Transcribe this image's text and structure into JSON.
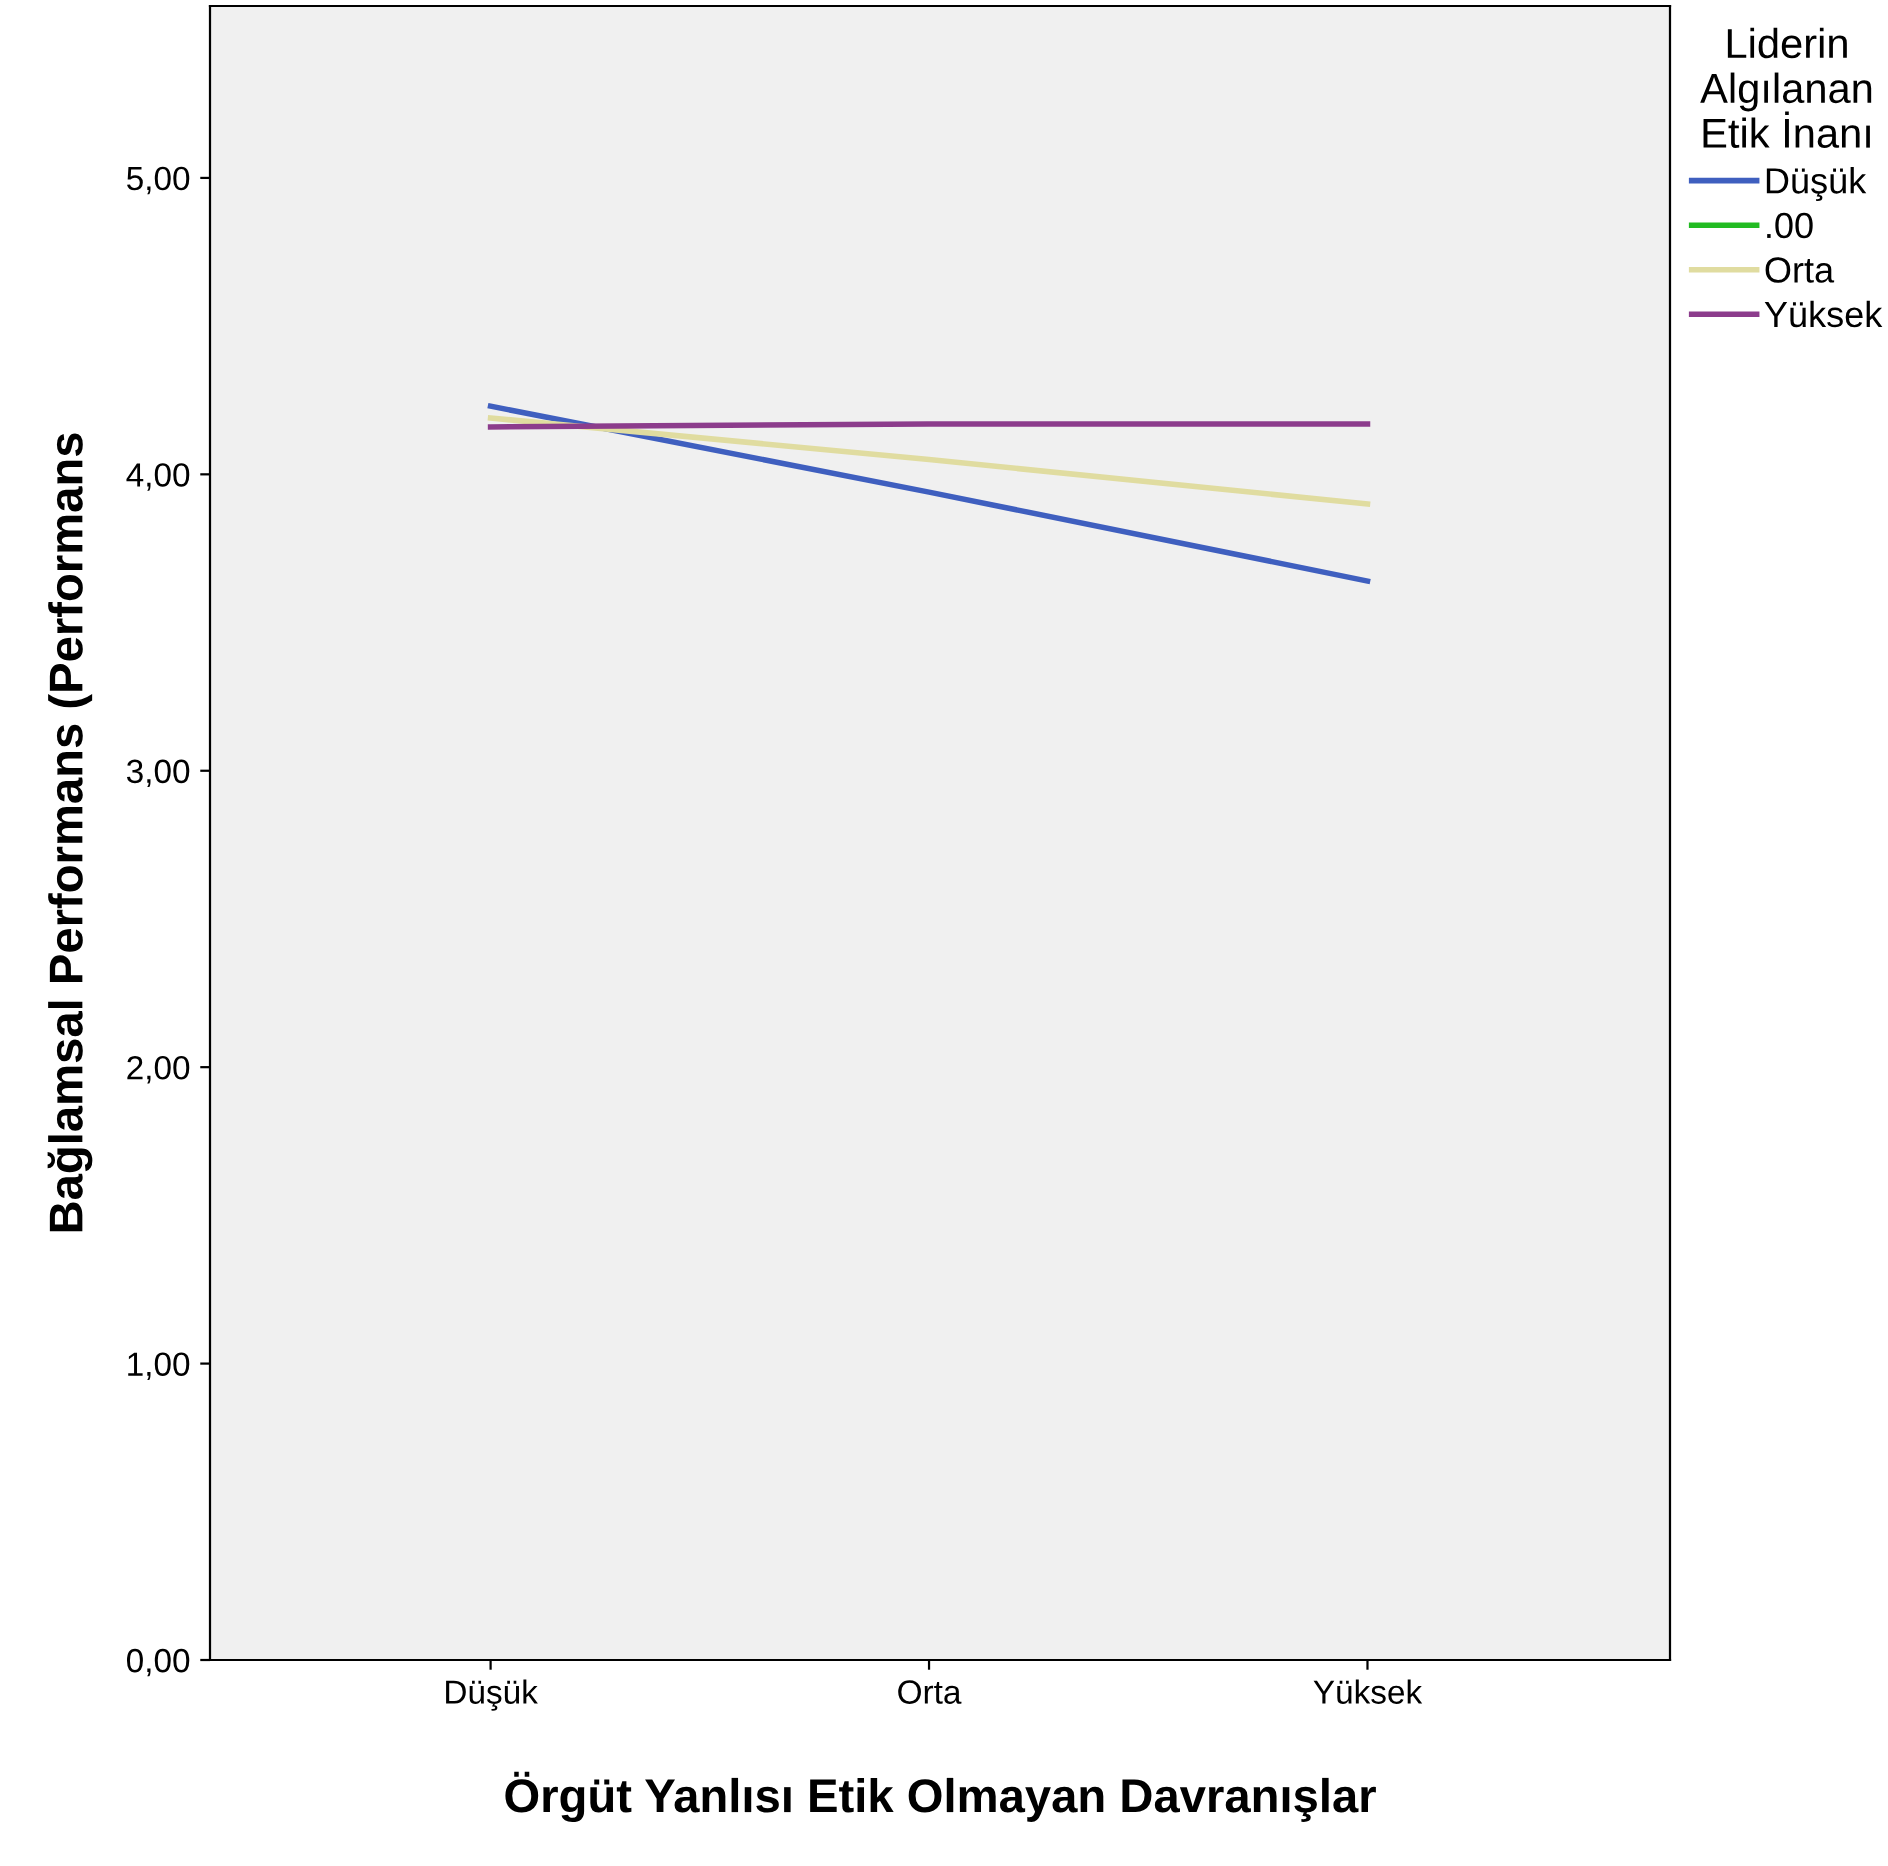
{
  "chart_data": {
    "type": "line",
    "xlabel": "Örgüt Yanlısı Etik Olmayan Davranışlar",
    "ylabel": "Bağlamsal Performans (Performans",
    "legend_title": "Liderin\nAlgılanan\nEtik İnanı",
    "categories": [
      "Düşük",
      "Orta",
      "Yüksek"
    ],
    "series": [
      {
        "name": "Düşük",
        "color": "#3f5fbf",
        "values": [
          4.23,
          3.94,
          3.64
        ]
      },
      {
        "name": ".00",
        "color": "#22bb22",
        "values": [
          null,
          null,
          null
        ]
      },
      {
        "name": "Orta",
        "color": "#e0dca0",
        "values": [
          4.19,
          4.05,
          3.9
        ]
      },
      {
        "name": "Yüksek",
        "color": "#8c3c8c",
        "values": [
          4.16,
          4.17,
          4.17
        ]
      }
    ],
    "ylim": [
      0,
      5.58
    ],
    "yticks": [
      {
        "value": 0,
        "label": "0,00"
      },
      {
        "value": 1,
        "label": "1,00"
      },
      {
        "value": 2,
        "label": "2,00"
      },
      {
        "value": 3,
        "label": "3,00"
      },
      {
        "value": 4,
        "label": "4,00"
      },
      {
        "value": 5,
        "label": "5,00"
      }
    ],
    "grid": false,
    "legend": "top right",
    "marker": "none",
    "line_style": "solid"
  }
}
